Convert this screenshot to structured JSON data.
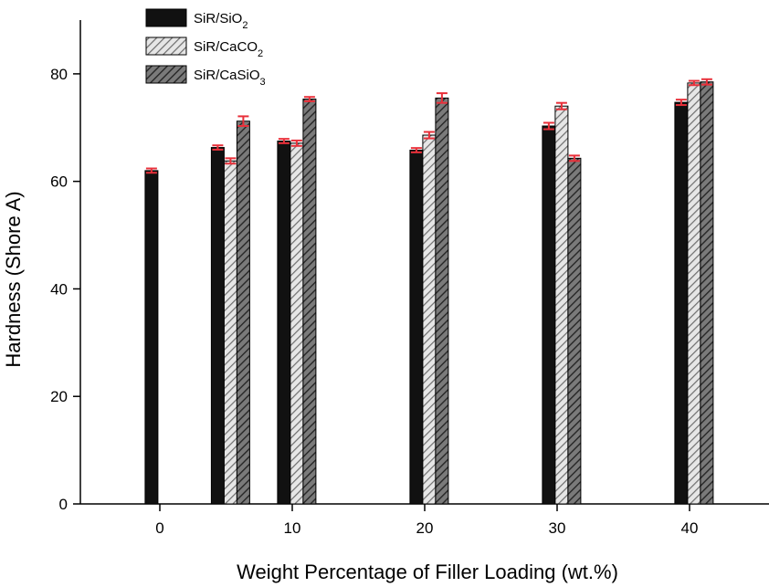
{
  "chart_data": {
    "type": "bar",
    "xlabel": "Weight Percentage of Filler Loading (wt.%)",
    "ylabel": "Hardness (Shore A)",
    "ylim": [
      0,
      90
    ],
    "yticks": [
      0,
      20,
      40,
      60,
      80
    ],
    "categories": [
      "0",
      "10",
      "20",
      "30",
      "40"
    ],
    "x_positions": [
      0,
      5,
      10,
      20,
      30,
      40
    ],
    "x_range": [
      -6,
      46
    ],
    "grid": false,
    "legend_position": "top-left",
    "series": [
      {
        "name_base": "SiR/SiO",
        "name_sub": "2",
        "color": "#111111",
        "pattern": "solid",
        "points": [
          {
            "x": 0,
            "value": 62,
            "err": 0.4
          },
          {
            "x": 5,
            "value": 66.3,
            "err": 0.4
          },
          {
            "x": 10,
            "value": 67.5,
            "err": 0.4
          },
          {
            "x": 20,
            "value": 65.8,
            "err": 0.4
          },
          {
            "x": 30,
            "value": 70.3,
            "err": 0.6
          },
          {
            "x": 40,
            "value": 74.7,
            "err": 0.5
          }
        ]
      },
      {
        "name_base": "SiR/CaCO",
        "name_sub": "2",
        "color": "#c8c8c8",
        "pattern": "light-hatch",
        "points": [
          {
            "x": 5,
            "value": 63.8,
            "err": 0.5
          },
          {
            "x": 10,
            "value": 67.1,
            "err": 0.5
          },
          {
            "x": 20,
            "value": 68.6,
            "err": 0.6
          },
          {
            "x": 30,
            "value": 74,
            "err": 0.6
          },
          {
            "x": 40,
            "value": 78.3,
            "err": 0.4
          }
        ]
      },
      {
        "name_base": "SiR/CaSiO",
        "name_sub": "3",
        "color": "#555555",
        "pattern": "dark-hatch",
        "points": [
          {
            "x": 5,
            "value": 71.2,
            "err": 0.9
          },
          {
            "x": 10,
            "value": 75.3,
            "err": 0.4
          },
          {
            "x": 20,
            "value": 75.5,
            "err": 0.9
          },
          {
            "x": 30,
            "value": 64.3,
            "err": 0.5
          },
          {
            "x": 40,
            "value": 78.5,
            "err": 0.5
          }
        ]
      }
    ]
  }
}
